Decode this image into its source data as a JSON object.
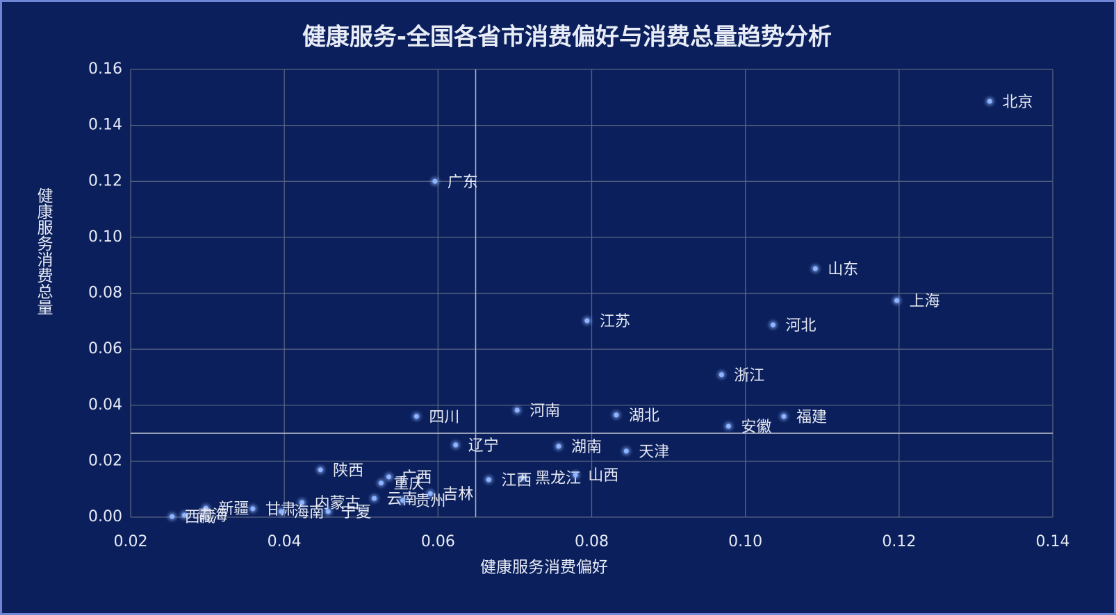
{
  "chart_data": {
    "type": "scatter",
    "title": "健康服务-全国各省市消费偏好与消费总量趋势分析",
    "x_label": "健康服务消费偏好",
    "y_label": "健康服务消费总量",
    "labels": [
      "北京",
      "广东",
      "山东",
      "上海",
      "江苏",
      "河北",
      "浙江",
      "河南",
      "湖北",
      "福建",
      "四川",
      "安徽",
      "辽宁",
      "湖南",
      "天津",
      "陕西",
      "广西",
      "黑龙江",
      "山西",
      "江西",
      "重庆",
      "吉林",
      "云南",
      "贵州",
      "内蒙古",
      "新疆",
      "甘肃",
      "海南",
      "宁夏",
      "青海",
      "西藏"
    ],
    "x": [
      0.1318,
      0.0596,
      0.1091,
      0.1197,
      0.0794,
      0.1036,
      0.0969,
      0.0703,
      0.0832,
      0.105,
      0.0572,
      0.0978,
      0.0623,
      0.0757,
      0.0845,
      0.0447,
      0.0536,
      0.071,
      0.0779,
      0.0666,
      0.0526,
      0.059,
      0.0517,
      0.0554,
      0.0423,
      0.0298,
      0.0359,
      0.0396,
      0.0457,
      0.027,
      0.0254
    ],
    "y": [
      0.1486,
      0.12,
      0.0888,
      0.0774,
      0.0702,
      0.0687,
      0.0509,
      0.0382,
      0.0365,
      0.036,
      0.036,
      0.0325,
      0.0258,
      0.0253,
      0.0236,
      0.0169,
      0.0144,
      0.0141,
      0.0151,
      0.0134,
      0.0122,
      0.0084,
      0.0067,
      0.006,
      0.0052,
      0.0032,
      0.003,
      0.002,
      0.002,
      0.0007,
      0.0002
    ],
    "color": "#8fb4ff",
    "xlim": [
      0.02,
      0.14
    ],
    "ylim": [
      0,
      0.16
    ],
    "xticks": [
      {
        "value": 0.02,
        "label": "0.02"
      },
      {
        "value": 0.04,
        "label": "0.04"
      },
      {
        "value": 0.06,
        "label": "0.06"
      },
      {
        "value": 0.08,
        "label": "0.08"
      },
      {
        "value": 0.1,
        "label": "0.10"
      },
      {
        "value": 0.12,
        "label": "0.12"
      },
      {
        "value": 0.14,
        "label": "0.14"
      }
    ],
    "yticks": [
      {
        "value": 0,
        "label": "0.00"
      },
      {
        "value": 0.02,
        "label": "0.02"
      },
      {
        "value": 0.04,
        "label": "0.04"
      },
      {
        "value": 0.06,
        "label": "0.06"
      },
      {
        "value": 0.08,
        "label": "0.08"
      },
      {
        "value": 0.1,
        "label": "0.10"
      },
      {
        "value": 0.12,
        "label": "0.12"
      },
      {
        "value": 0.14,
        "label": "0.14"
      },
      {
        "value": 0.16,
        "label": "0.16"
      }
    ],
    "grid": true,
    "mean_lines": {
      "x": 0.0649,
      "y": 0.03
    }
  }
}
